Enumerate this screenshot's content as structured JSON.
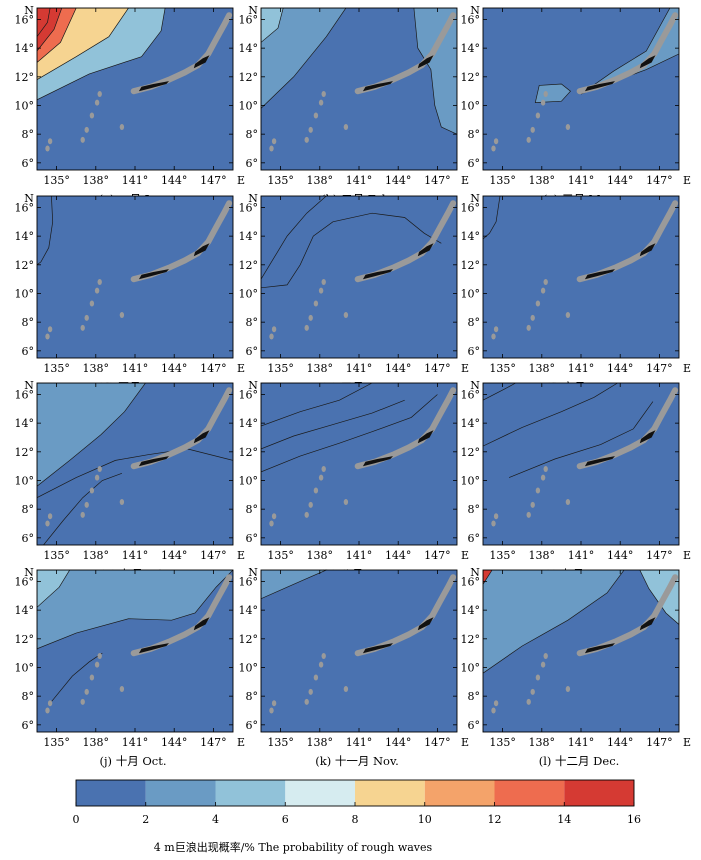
{
  "chart_data": {
    "type": "heatmap",
    "colorbar": {
      "bounds": [
        0,
        2,
        4,
        6,
        8,
        10,
        12,
        14,
        16
      ],
      "tick_labels": [
        "0",
        "2",
        "4",
        "6",
        "8",
        "10",
        "12",
        "14",
        "16"
      ],
      "colors": [
        "#4a72b0",
        "#6a9bc4",
        "#91c2d9",
        "#d6ecf0",
        "#f6d491",
        "#f4a36a",
        "#ee6c4f",
        "#d53a33"
      ],
      "label": "4 m巨浪出现概率/% The probability of rough waves"
    },
    "xaxis": {
      "range": [
        133.5,
        148.5
      ],
      "ticks": [
        135,
        138,
        141,
        144,
        147
      ],
      "tick_labels": [
        "135°",
        "138°",
        "141°",
        "144°",
        "147°"
      ],
      "end_label": "E"
    },
    "yaxis": {
      "range": [
        5.5,
        16.8
      ],
      "ticks": [
        6,
        8,
        10,
        12,
        14,
        16
      ],
      "tick_labels": [
        "6°",
        "8°",
        "10°",
        "12°",
        "14°",
        "16°"
      ],
      "end_label": "N"
    },
    "panels": [
      {
        "id": "a",
        "caption": "(a) 一月 Jan.",
        "levels": [
          1,
          2,
          4,
          6,
          10,
          12
        ]
      },
      {
        "id": "b",
        "caption": "(b) 二月 Feb.",
        "levels": [
          1,
          1,
          1,
          2
        ]
      },
      {
        "id": "c",
        "caption": "(c) 三月 Mar.",
        "levels": [
          1
        ]
      },
      {
        "id": "d",
        "caption": "(d) 四月 Apr.",
        "levels": [
          0,
          0
        ]
      },
      {
        "id": "e",
        "caption": "(e) 五月 May",
        "levels": [
          0,
          0,
          0
        ]
      },
      {
        "id": "f",
        "caption": "(f) 六月 Jun.",
        "levels": [
          0,
          0
        ]
      },
      {
        "id": "g",
        "caption": "(g) 七月 Jul.",
        "levels": [
          0,
          1,
          2
        ]
      },
      {
        "id": "h",
        "caption": "(h) 八月 Aug.",
        "levels": [
          0,
          0,
          1
        ]
      },
      {
        "id": "i",
        "caption": "(i) 九月 Sep.",
        "levels": [
          0,
          0,
          1
        ]
      },
      {
        "id": "j",
        "caption": "(j) 十月 Oct.",
        "levels": [
          0,
          1,
          2
        ]
      },
      {
        "id": "k",
        "caption": "(k) 十一月 Nov.",
        "levels": [
          1
        ]
      },
      {
        "id": "l",
        "caption": "(l) 十二月 Dec.",
        "levels": [
          1,
          1,
          2,
          8
        ]
      }
    ]
  }
}
